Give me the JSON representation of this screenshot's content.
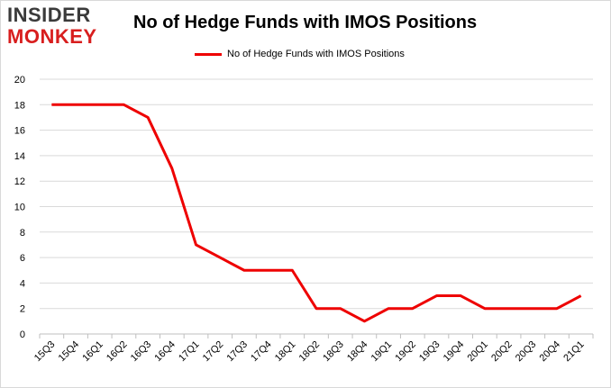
{
  "logo": {
    "line1": "INSIDER",
    "line2": "MONKEY"
  },
  "chart_data": {
    "type": "line",
    "title": "No of Hedge Funds with IMOS Positions",
    "legend": "No of Hedge Funds with IMOS Positions",
    "legend_position": "top-center",
    "categories": [
      "15Q3",
      "15Q4",
      "16Q1",
      "16Q2",
      "16Q3",
      "16Q4",
      "17Q1",
      "17Q2",
      "17Q3",
      "17Q4",
      "18Q1",
      "18Q2",
      "18Q3",
      "18Q4",
      "19Q1",
      "19Q2",
      "19Q3",
      "19Q4",
      "20Q1",
      "20Q2",
      "20Q3",
      "20Q4",
      "21Q1"
    ],
    "series": [
      {
        "name": "No of Hedge Funds with IMOS Positions",
        "values": [
          18,
          18,
          18,
          18,
          17,
          13,
          7,
          6,
          5,
          5,
          5,
          2,
          2,
          1,
          2,
          2,
          3,
          3,
          2,
          2,
          2,
          2,
          3
        ],
        "color": "#ee0000"
      }
    ],
    "ylim": [
      0,
      20
    ],
    "yticks": [
      0,
      2,
      4,
      6,
      8,
      10,
      12,
      14,
      16,
      18,
      20
    ],
    "grid": true,
    "xlabel": "",
    "ylabel": ""
  }
}
